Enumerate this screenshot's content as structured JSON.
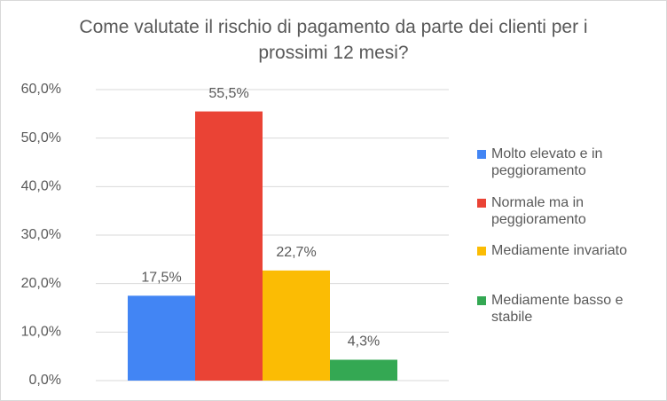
{
  "chart_data": {
    "type": "bar",
    "title": "Come valutate il rischio di pagamento da parte dei clienti per i prossimi 12 mesi?",
    "series": [
      {
        "name": "Molto elevato e in peggioramento",
        "color": "#4285f4",
        "values": [
          17.5
        ],
        "value_labels": [
          "17,5%"
        ]
      },
      {
        "name": "Normale ma in peggioramento",
        "color": "#ea4335",
        "values": [
          55.5
        ],
        "value_labels": [
          "55,5%"
        ]
      },
      {
        "name": "Mediamente invariato",
        "color": "#fbbc04",
        "values": [
          22.7
        ],
        "value_labels": [
          "22,7%"
        ]
      },
      {
        "name": "Mediamente basso e stabile",
        "color": "#34a853",
        "values": [
          4.3
        ],
        "value_labels": [
          "4,3%"
        ]
      }
    ],
    "ylim": [
      0,
      60
    ],
    "yticks": [
      {
        "value": 0,
        "label": "0,0%"
      },
      {
        "value": 10,
        "label": "10,0%"
      },
      {
        "value": 20,
        "label": "20,0%"
      },
      {
        "value": 30,
        "label": "30,0%"
      },
      {
        "value": 40,
        "label": "40,0%"
      },
      {
        "value": 50,
        "label": "50,0%"
      },
      {
        "value": 60,
        "label": "60,0%"
      }
    ],
    "grid": true,
    "legend": "right"
  }
}
